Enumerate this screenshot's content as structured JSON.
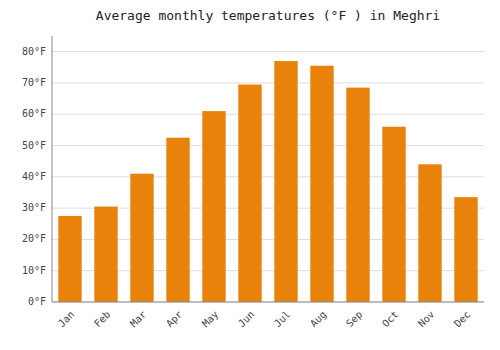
{
  "chart_data": {
    "type": "bar",
    "title": "Average monthly temperatures (°F ) in Meghri",
    "categories": [
      "Jan",
      "Feb",
      "Mar",
      "Apr",
      "May",
      "Jun",
      "Jul",
      "Aug",
      "Sep",
      "Oct",
      "Nov",
      "Dec"
    ],
    "values": [
      27.5,
      30.5,
      41.0,
      52.5,
      61.0,
      69.5,
      77.0,
      75.5,
      68.5,
      56.0,
      44.0,
      33.5
    ],
    "color": "#E8820A",
    "ylim": [
      0,
      85
    ],
    "yticks": [
      {
        "value": 0,
        "label": "0°F"
      },
      {
        "value": 10,
        "label": "10°F"
      },
      {
        "value": 20,
        "label": "20°F"
      },
      {
        "value": 30,
        "label": "30°F"
      },
      {
        "value": 40,
        "label": "40°F"
      },
      {
        "value": 50,
        "label": "50°F"
      },
      {
        "value": 60,
        "label": "60°F"
      },
      {
        "value": 70,
        "label": "70°F"
      },
      {
        "value": 80,
        "label": "80°F"
      }
    ],
    "grid": true
  }
}
